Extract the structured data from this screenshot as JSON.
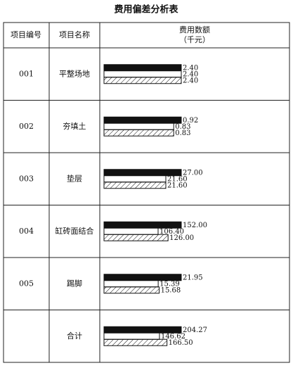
{
  "title": "费用偏差分析表",
  "table": {
    "headers": [
      "项目编号",
      "项目名称",
      "费用数额"
    ],
    "unit": "（千元）",
    "rows": [
      {
        "id": "001",
        "name": "平整场地",
        "values": [
          2.4,
          2.4,
          2.4
        ],
        "value_labels": [
          "2.40",
          "2.40",
          "2.40"
        ]
      },
      {
        "id": "002",
        "name": "夯填土",
        "values": [
          0.92,
          0.83,
          0.83
        ],
        "value_labels": [
          "0.92",
          "0.83",
          "0.83"
        ]
      },
      {
        "id": "003",
        "name": "垫层",
        "values": [
          27,
          21.6,
          21.6
        ],
        "value_labels": [
          "27.00",
          "21.60",
          "21.60"
        ]
      },
      {
        "id": "004",
        "name": "缸砖面结合",
        "values": [
          152,
          106.4,
          126
        ],
        "value_labels": [
          "152.00",
          "106.40",
          "126.00"
        ]
      },
      {
        "id": "005",
        "name": "踢脚",
        "values": [
          21.95,
          15.39,
          15.68
        ],
        "value_labels": [
          "21.95",
          "15.39",
          "15.68"
        ]
      },
      {
        "name": "合计",
        "values": [
          204.27,
          146.62,
          166.5
        ],
        "value_labels": [
          "204.27",
          "146.62",
          "166.50"
        ]
      }
    ]
  }
}
